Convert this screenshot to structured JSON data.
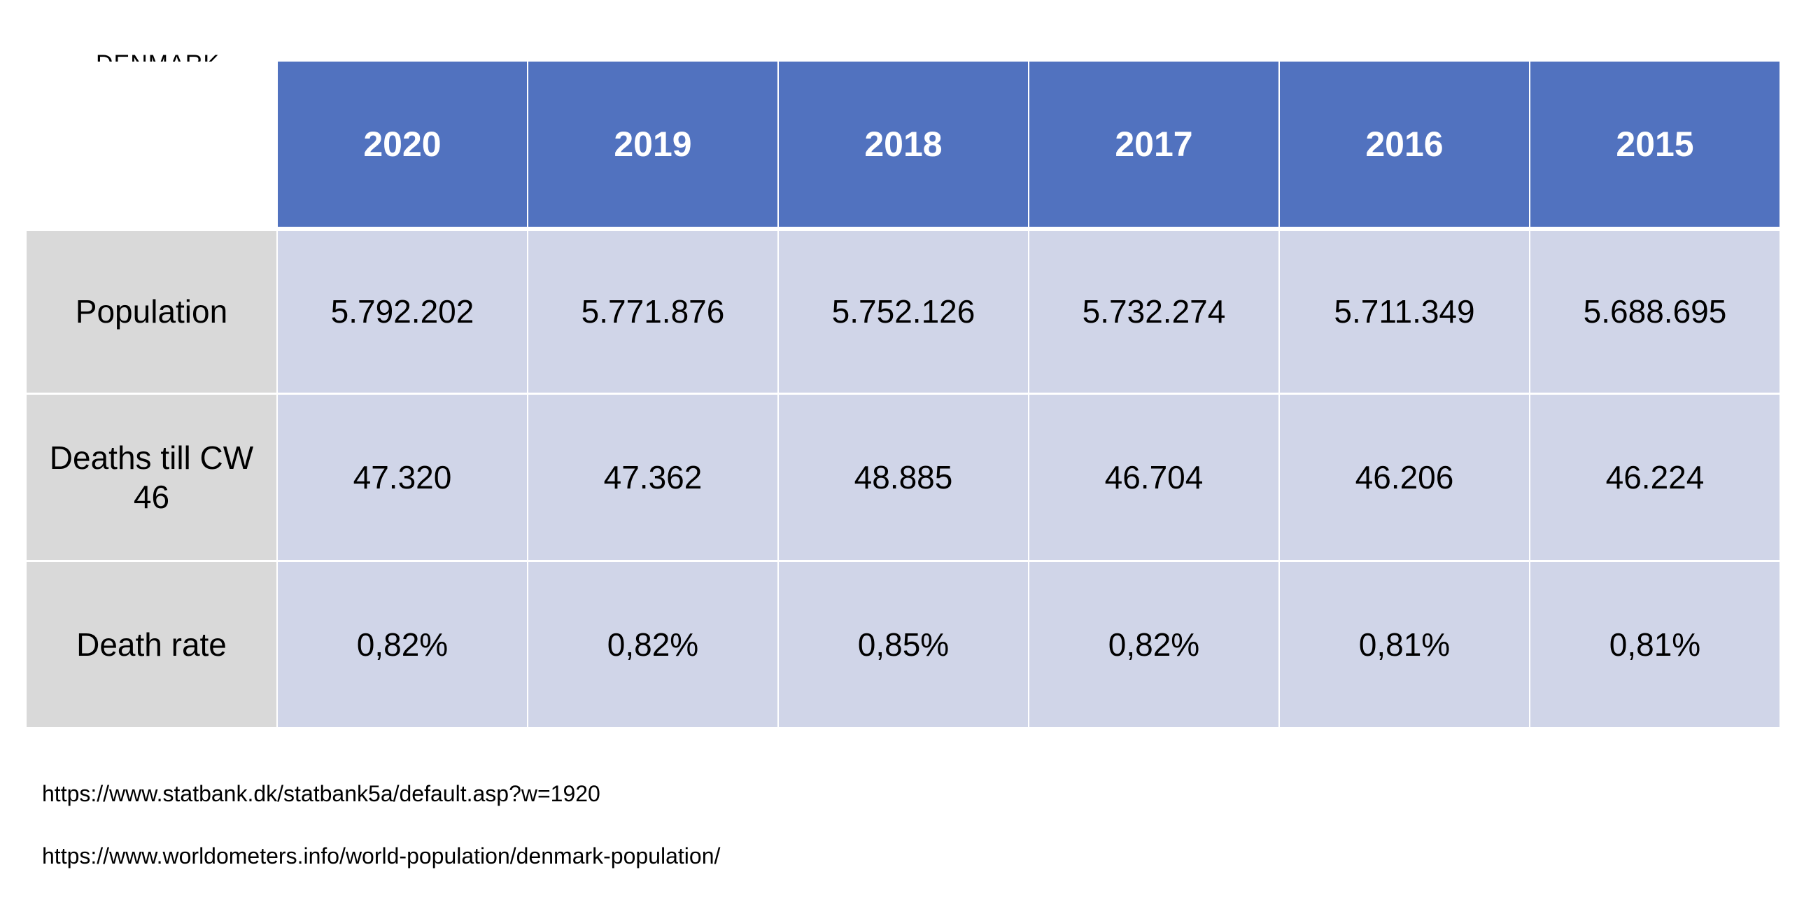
{
  "country": "DENMARK",
  "flag": {
    "red": "#e8352a",
    "white": "#ffffff"
  },
  "colors": {
    "header": "#5172bf",
    "row_label_bg": "#d9d9d9",
    "value_bg": "#d0d5e8"
  },
  "table": {
    "years": [
      "2020",
      "2019",
      "2018",
      "2017",
      "2016",
      "2015"
    ],
    "rows": [
      {
        "label": "Population",
        "values": [
          "5.792.202",
          "5.771.876",
          "5.752.126",
          "5.732.274",
          "5.711.349",
          "5.688.695"
        ]
      },
      {
        "label": "Deaths till CW 46",
        "values": [
          "47.320",
          "47.362",
          "48.885",
          "46.704",
          "46.206",
          "46.224"
        ]
      },
      {
        "label": "Death rate",
        "values": [
          "0,82%",
          "0,82%",
          "0,85%",
          "0,82%",
          "0,81%",
          "0,81%"
        ]
      }
    ]
  },
  "sources": [
    "https://www.statbank.dk/statbank5a/default.asp?w=1920",
    "https://www.worldometers.info/world-population/denmark-population/"
  ]
}
